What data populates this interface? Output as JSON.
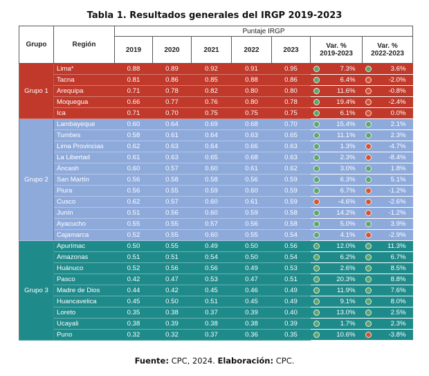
{
  "title": "Tabla 1. Resultados generales del IRGP 2019-2023",
  "header": {
    "grupo": "Grupo",
    "region": "Región",
    "puntaje": "Puntaje IRGP",
    "years": [
      "2019",
      "2020",
      "2021",
      "2022",
      "2023"
    ],
    "var1": "Var. %\n2019-2023",
    "var2": "Var. %\n2022-2023"
  },
  "colors": {
    "grupo1": "#c0392b",
    "grupo2": "#8eaadb",
    "grupo3": "#1f8a8a",
    "up": "#5aa86a",
    "down": "#d9532e"
  },
  "groups": [
    {
      "name": "Grupo 1",
      "cls": "g1",
      "rows": [
        {
          "region": "Lima*",
          "v": [
            "0.88",
            "0.89",
            "0.92",
            "0.91",
            "0.95"
          ],
          "var1": "7.3%",
          "d1": "green",
          "var2": "3.6%",
          "d2": "green"
        },
        {
          "region": "Tacna",
          "v": [
            "0.81",
            "0.86",
            "0.85",
            "0.88",
            "0.86"
          ],
          "var1": "6.4%",
          "d1": "green",
          "var2": "-2.0%",
          "d2": "red"
        },
        {
          "region": "Arequipa",
          "v": [
            "0.71",
            "0.78",
            "0.82",
            "0.80",
            "0.80"
          ],
          "var1": "11.6%",
          "d1": "green",
          "var2": "-0.8%",
          "d2": "red"
        },
        {
          "region": "Moquegua",
          "v": [
            "0.66",
            "0.77",
            "0.76",
            "0.80",
            "0.78"
          ],
          "var1": "19.4%",
          "d1": "green",
          "var2": "-2.4%",
          "d2": "red"
        },
        {
          "region": "Ica",
          "v": [
            "0.71",
            "0.70",
            "0.75",
            "0.75",
            "0.75"
          ],
          "var1": "6.1%",
          "d1": "green",
          "var2": "0.0%",
          "d2": "red"
        }
      ]
    },
    {
      "name": "Grupo 2",
      "cls": "g2",
      "rows": [
        {
          "region": "Lambayeque",
          "v": [
            "0.60",
            "0.64",
            "0.69",
            "0.68",
            "0.70"
          ],
          "var1": "15.4%",
          "d1": "green",
          "var2": "2.1%",
          "d2": "green"
        },
        {
          "region": "Tumbes",
          "v": [
            "0.58",
            "0.61",
            "0.64",
            "0.63",
            "0.65"
          ],
          "var1": "11.1%",
          "d1": "green",
          "var2": "2.3%",
          "d2": "green"
        },
        {
          "region": "Lima Provincias",
          "v": [
            "0.62",
            "0.63",
            "0.64",
            "0.66",
            "0.63"
          ],
          "var1": "1.3%",
          "d1": "green",
          "var2": "-4.7%",
          "d2": "red"
        },
        {
          "region": "La Libertad",
          "v": [
            "0.61",
            "0.63",
            "0.65",
            "0.68",
            "0.63"
          ],
          "var1": "2.3%",
          "d1": "green",
          "var2": "-8.4%",
          "d2": "red"
        },
        {
          "region": "Áncash",
          "v": [
            "0.60",
            "0.57",
            "0.60",
            "0.61",
            "0.62"
          ],
          "var1": "3.0%",
          "d1": "green",
          "var2": "1.8%",
          "d2": "green"
        },
        {
          "region": "San Martín",
          "v": [
            "0.56",
            "0.58",
            "0.58",
            "0.56",
            "0.59"
          ],
          "var1": "6.3%",
          "d1": "green",
          "var2": "5.1%",
          "d2": "green"
        },
        {
          "region": "Piura",
          "v": [
            "0.56",
            "0.55",
            "0.59",
            "0.60",
            "0.59"
          ],
          "var1": "6.7%",
          "d1": "green",
          "var2": "-1.2%",
          "d2": "red"
        },
        {
          "region": "Cusco",
          "v": [
            "0.62",
            "0.57",
            "0.60",
            "0.61",
            "0.59"
          ],
          "var1": "-4.6%",
          "d1": "red",
          "var2": "-2.6%",
          "d2": "red"
        },
        {
          "region": "Junín",
          "v": [
            "0.51",
            "0.56",
            "0.60",
            "0.59",
            "0.58"
          ],
          "var1": "14.2%",
          "d1": "green",
          "var2": "-1.2%",
          "d2": "red"
        },
        {
          "region": "Ayacucho",
          "v": [
            "0.55",
            "0.55",
            "0.57",
            "0.56",
            "0.58"
          ],
          "var1": "5.0%",
          "d1": "green",
          "var2": "3.9%",
          "d2": "green"
        },
        {
          "region": "Cajamarca",
          "v": [
            "0.52",
            "0.55",
            "0.60",
            "0.55",
            "0.54"
          ],
          "var1": "4.1%",
          "d1": "green",
          "var2": "-2.9%",
          "d2": "red"
        }
      ]
    },
    {
      "name": "Grupo 3",
      "cls": "g3",
      "rows": [
        {
          "region": "Apurímac",
          "v": [
            "0.50",
            "0.55",
            "0.49",
            "0.50",
            "0.56"
          ],
          "var1": "12.0%",
          "d1": "green",
          "var2": "11.3%",
          "d2": "green"
        },
        {
          "region": "Amazonas",
          "v": [
            "0.51",
            "0.51",
            "0.54",
            "0.50",
            "0.54"
          ],
          "var1": "6.2%",
          "d1": "green",
          "var2": "6.7%",
          "d2": "green"
        },
        {
          "region": "Huánuco",
          "v": [
            "0.52",
            "0.56",
            "0.56",
            "0.49",
            "0.53"
          ],
          "var1": "2.6%",
          "d1": "green",
          "var2": "8.5%",
          "d2": "green"
        },
        {
          "region": "Pasco",
          "v": [
            "0.42",
            "0.47",
            "0.53",
            "0.47",
            "0.51"
          ],
          "var1": "20.3%",
          "d1": "green",
          "var2": "8.8%",
          "d2": "green"
        },
        {
          "region": "Madre de Dios",
          "v": [
            "0.44",
            "0.42",
            "0.45",
            "0.46",
            "0.49"
          ],
          "var1": "11.9%",
          "d1": "green",
          "var2": "7.6%",
          "d2": "green"
        },
        {
          "region": "Huancavelica",
          "v": [
            "0.45",
            "0.50",
            "0.51",
            "0.45",
            "0.49"
          ],
          "var1": "9.1%",
          "d1": "green",
          "var2": "8.0%",
          "d2": "green"
        },
        {
          "region": "Loreto",
          "v": [
            "0.35",
            "0.38",
            "0.37",
            "0.39",
            "0.40"
          ],
          "var1": "13.0%",
          "d1": "green",
          "var2": "2.5%",
          "d2": "green"
        },
        {
          "region": "Ucayali",
          "v": [
            "0.38",
            "0.39",
            "0.38",
            "0.38",
            "0.39"
          ],
          "var1": "1.7%",
          "d1": "green",
          "var2": "2.3%",
          "d2": "green"
        },
        {
          "region": "Puno",
          "v": [
            "0.32",
            "0.32",
            "0.37",
            "0.36",
            "0.35"
          ],
          "var1": "10.6%",
          "d1": "green",
          "var2": "-3.8%",
          "d2": "red"
        }
      ]
    }
  ],
  "source": {
    "fuente_label": "Fuente:",
    "fuente_text": " CPC, 2024. ",
    "elab_label": "Elaboración:",
    "elab_text": " CPC."
  }
}
